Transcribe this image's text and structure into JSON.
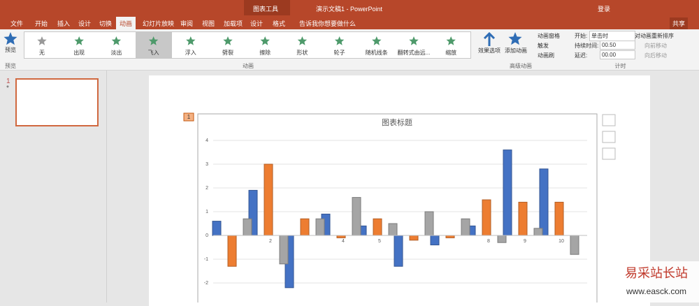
{
  "title_bar": {
    "context_tab": "图表工具",
    "document_title": "演示文稿1 - PowerPoint",
    "sign_in": "登录"
  },
  "tabs": [
    "文件",
    "开始",
    "插入",
    "设计",
    "切换",
    "动画",
    "幻灯片放映",
    "审阅",
    "视图",
    "加载项",
    "设计",
    "格式"
  ],
  "tell_me": "告诉我你想要做什么",
  "share": "共享",
  "ribbon": {
    "preview": "预览",
    "gallery": [
      "无",
      "出现",
      "淡出",
      "飞入",
      "浮入",
      "劈裂",
      "擦除",
      "形状",
      "轮子",
      "随机线条",
      "翻转式由远...",
      "缩放"
    ],
    "effect_options": "效果选项",
    "add_animation": "添加动画",
    "animation_pane": "动画窗格",
    "trigger": "触发",
    "animation_painter": "动画刷",
    "start_label": "开始:",
    "start_value": "单击时",
    "duration_label": "持续时间:",
    "duration_value": "00.50",
    "delay_label": "延迟:",
    "delay_value": "00.00",
    "reorder": "对动画重新排序",
    "move_earlier": "向前移动",
    "move_later": "向后移动",
    "groups": [
      "预览",
      "动画",
      "高级动画",
      "计时"
    ]
  },
  "slide_panel": {
    "number": "1",
    "star": "*"
  },
  "animation_badge": "1",
  "watermark": {
    "name": "易采站长站",
    "url": "www.easck.com"
  },
  "chart_data": {
    "type": "bar",
    "title": "图表标题",
    "categories": [
      null,
      "2",
      null,
      "4",
      "5",
      null,
      null,
      "8",
      "9",
      "10"
    ],
    "series": [
      {
        "color": "#4472c4",
        "values": [
          0.6,
          1.9,
          -2.2,
          0.9,
          0.4,
          -1.3,
          -0.4,
          0.4,
          3.6,
          2.8
        ]
      },
      {
        "color": "#ed7d31",
        "values": [
          -1.3,
          3.0,
          0.7,
          -0.1,
          0.7,
          -0.2,
          -0.1,
          1.5,
          1.4,
          1.4
        ]
      },
      {
        "color": "#a5a5a5",
        "values": [
          0.7,
          -1.2,
          0.7,
          1.6,
          0.5,
          1.0,
          0.7,
          -0.3,
          0.3,
          -0.8
        ]
      }
    ],
    "ylim": [
      -3,
      4
    ],
    "yticks": [
      -2,
      -1,
      0,
      1,
      2,
      3,
      4
    ],
    "grid": true
  }
}
